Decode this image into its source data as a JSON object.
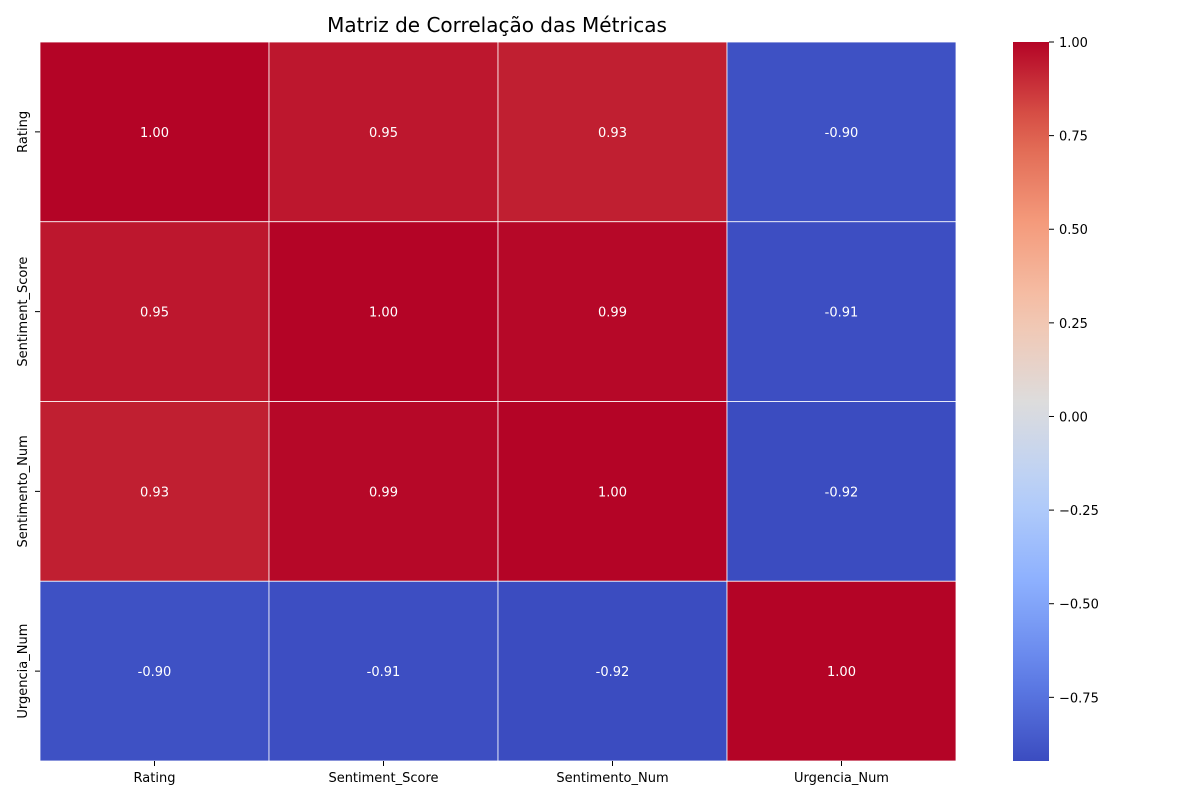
{
  "chart_data": {
    "type": "heatmap",
    "title": "Matriz de Correlação das Métricas",
    "xlabel": "",
    "ylabel": "",
    "x_labels": [
      "Rating",
      "Sentiment_Score",
      "Sentimento_Num",
      "Urgencia_Num"
    ],
    "y_labels": [
      "Rating",
      "Sentiment_Score",
      "Sentimento_Num",
      "Urgencia_Num"
    ],
    "values": [
      [
        1.0,
        0.95,
        0.93,
        -0.9
      ],
      [
        0.95,
        1.0,
        0.99,
        -0.91
      ],
      [
        0.93,
        0.99,
        1.0,
        -0.92
      ],
      [
        -0.9,
        -0.91,
        -0.92,
        1.0
      ]
    ],
    "value_format": "0.00",
    "colormap": "coolwarm",
    "colorbar": {
      "range": [
        -0.92,
        1.0
      ],
      "ticks": [
        -0.75,
        -0.5,
        -0.25,
        0.0,
        0.25,
        0.5,
        0.75,
        1.0
      ],
      "tick_labels": [
        "−0.75",
        "−0.50",
        "−0.25",
        "0.00",
        "0.25",
        "0.50",
        "0.75",
        "1.00"
      ]
    },
    "colors": {
      "low": "#3b4cc0",
      "mid": "#dddcdc",
      "high": "#b40426",
      "cell_border": "#ffffff",
      "annotation_text": "#ffffff"
    }
  }
}
